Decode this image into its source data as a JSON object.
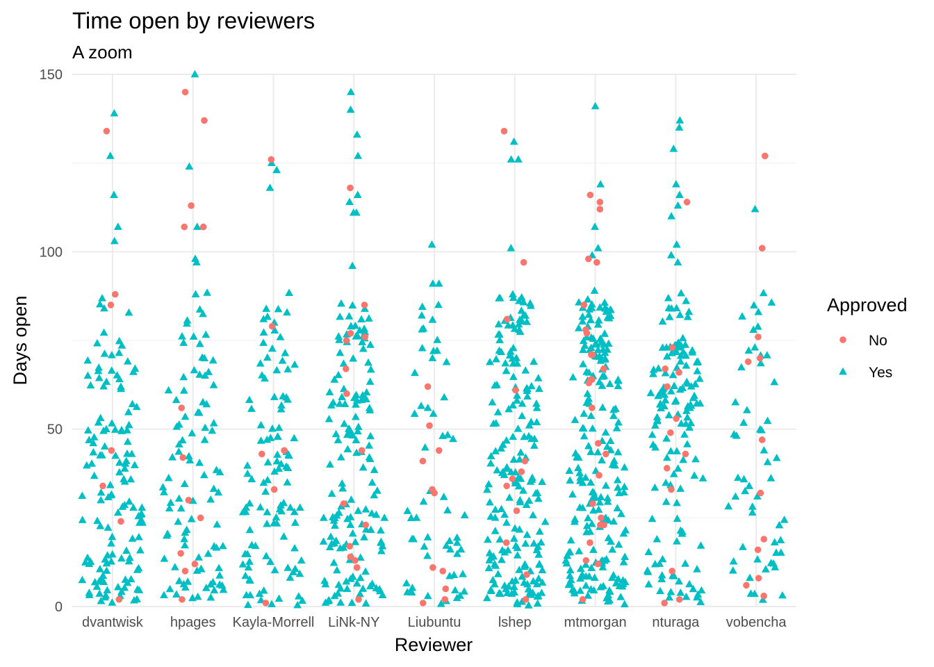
{
  "chart_data": {
    "type": "scatter",
    "title": "Time open by reviewers",
    "subtitle": "A zoom",
    "xlabel": "Reviewer",
    "ylabel": "Days open",
    "categories": [
      "dvantwisk",
      "hpages",
      "Kayla-Morrell",
      "LiNk-NY",
      "Liubuntu",
      "lshep",
      "mtmorgan",
      "nturaga",
      "vobencha"
    ],
    "ylim": [
      0,
      150
    ],
    "yticks": [
      0,
      50,
      100,
      150
    ],
    "grid": true,
    "legend": {
      "title": "Approved",
      "position": "right",
      "entries": [
        {
          "label": "No",
          "shape": "circle",
          "color": "#F8766D"
        },
        {
          "label": "Yes",
          "shape": "triangle",
          "color": "#00BFC4"
        }
      ]
    },
    "colors": {
      "No": "#F8766D",
      "Yes": "#00BFC4"
    },
    "series": [
      {
        "name": "No",
        "points": [
          {
            "x": "dvantwisk",
            "y": 134
          },
          {
            "x": "dvantwisk",
            "y": 88
          },
          {
            "x": "dvantwisk",
            "y": 85
          },
          {
            "x": "dvantwisk",
            "y": 44
          },
          {
            "x": "dvantwisk",
            "y": 34
          },
          {
            "x": "dvantwisk",
            "y": 24
          },
          {
            "x": "dvantwisk",
            "y": 2
          },
          {
            "x": "hpages",
            "y": 145
          },
          {
            "x": "hpages",
            "y": 137
          },
          {
            "x": "hpages",
            "y": 113
          },
          {
            "x": "hpages",
            "y": 107
          },
          {
            "x": "hpages",
            "y": 107
          },
          {
            "x": "hpages",
            "y": 56
          },
          {
            "x": "hpages",
            "y": 42
          },
          {
            "x": "hpages",
            "y": 30
          },
          {
            "x": "hpages",
            "y": 25
          },
          {
            "x": "hpages",
            "y": 15
          },
          {
            "x": "hpages",
            "y": 12
          },
          {
            "x": "hpages",
            "y": 10
          },
          {
            "x": "hpages",
            "y": 2
          },
          {
            "x": "Kayla-Morrell",
            "y": 126
          },
          {
            "x": "Kayla-Morrell",
            "y": 79
          },
          {
            "x": "Kayla-Morrell",
            "y": 44
          },
          {
            "x": "Kayla-Morrell",
            "y": 43
          },
          {
            "x": "Kayla-Morrell",
            "y": 33
          },
          {
            "x": "Kayla-Morrell",
            "y": 1
          },
          {
            "x": "LiNk-NY",
            "y": 118
          },
          {
            "x": "LiNk-NY",
            "y": 85
          },
          {
            "x": "LiNk-NY",
            "y": 77
          },
          {
            "x": "LiNk-NY",
            "y": 76
          },
          {
            "x": "LiNk-NY",
            "y": 75
          },
          {
            "x": "LiNk-NY",
            "y": 67
          },
          {
            "x": "LiNk-NY",
            "y": 60
          },
          {
            "x": "LiNk-NY",
            "y": 44
          },
          {
            "x": "LiNk-NY",
            "y": 29
          },
          {
            "x": "LiNk-NY",
            "y": 23
          },
          {
            "x": "LiNk-NY",
            "y": 17
          },
          {
            "x": "LiNk-NY",
            "y": 14
          },
          {
            "x": "LiNk-NY",
            "y": 13
          },
          {
            "x": "LiNk-NY",
            "y": 11
          },
          {
            "x": "LiNk-NY",
            "y": 2
          },
          {
            "x": "Liubuntu",
            "y": 62
          },
          {
            "x": "Liubuntu",
            "y": 51
          },
          {
            "x": "Liubuntu",
            "y": 44
          },
          {
            "x": "Liubuntu",
            "y": 41
          },
          {
            "x": "Liubuntu",
            "y": 33
          },
          {
            "x": "Liubuntu",
            "y": 32
          },
          {
            "x": "Liubuntu",
            "y": 11
          },
          {
            "x": "Liubuntu",
            "y": 10
          },
          {
            "x": "Liubuntu",
            "y": 5
          },
          {
            "x": "Liubuntu",
            "y": 2
          },
          {
            "x": "Liubuntu",
            "y": 1
          },
          {
            "x": "lshep",
            "y": 134
          },
          {
            "x": "lshep",
            "y": 97
          },
          {
            "x": "lshep",
            "y": 81
          },
          {
            "x": "lshep",
            "y": 61
          },
          {
            "x": "lshep",
            "y": 41
          },
          {
            "x": "lshep",
            "y": 38
          },
          {
            "x": "lshep",
            "y": 36
          },
          {
            "x": "lshep",
            "y": 34
          },
          {
            "x": "lshep",
            "y": 27
          },
          {
            "x": "lshep",
            "y": 18
          },
          {
            "x": "lshep",
            "y": 9
          },
          {
            "x": "lshep",
            "y": 2
          },
          {
            "x": "mtmorgan",
            "y": 116
          },
          {
            "x": "mtmorgan",
            "y": 114
          },
          {
            "x": "mtmorgan",
            "y": 112
          },
          {
            "x": "mtmorgan",
            "y": 98
          },
          {
            "x": "mtmorgan",
            "y": 97
          },
          {
            "x": "mtmorgan",
            "y": 85
          },
          {
            "x": "mtmorgan",
            "y": 78
          },
          {
            "x": "mtmorgan",
            "y": 77
          },
          {
            "x": "mtmorgan",
            "y": 71
          },
          {
            "x": "mtmorgan",
            "y": 71
          },
          {
            "x": "mtmorgan",
            "y": 67
          },
          {
            "x": "mtmorgan",
            "y": 64
          },
          {
            "x": "mtmorgan",
            "y": 64
          },
          {
            "x": "mtmorgan",
            "y": 63
          },
          {
            "x": "mtmorgan",
            "y": 56
          },
          {
            "x": "mtmorgan",
            "y": 46
          },
          {
            "x": "mtmorgan",
            "y": 43
          },
          {
            "x": "mtmorgan",
            "y": 37
          },
          {
            "x": "mtmorgan",
            "y": 29
          },
          {
            "x": "mtmorgan",
            "y": 25
          },
          {
            "x": "mtmorgan",
            "y": 23
          },
          {
            "x": "mtmorgan",
            "y": 23
          },
          {
            "x": "mtmorgan",
            "y": 18
          },
          {
            "x": "mtmorgan",
            "y": 13
          },
          {
            "x": "mtmorgan",
            "y": 12
          },
          {
            "x": "mtmorgan",
            "y": 2
          },
          {
            "x": "nturaga",
            "y": 114
          },
          {
            "x": "nturaga",
            "y": 73
          },
          {
            "x": "nturaga",
            "y": 67
          },
          {
            "x": "nturaga",
            "y": 66
          },
          {
            "x": "nturaga",
            "y": 62
          },
          {
            "x": "nturaga",
            "y": 53
          },
          {
            "x": "nturaga",
            "y": 49
          },
          {
            "x": "nturaga",
            "y": 43
          },
          {
            "x": "nturaga",
            "y": 39
          },
          {
            "x": "nturaga",
            "y": 33
          },
          {
            "x": "nturaga",
            "y": 10
          },
          {
            "x": "nturaga",
            "y": 2
          },
          {
            "x": "nturaga",
            "y": 1
          },
          {
            "x": "vobencha",
            "y": 127
          },
          {
            "x": "vobencha",
            "y": 101
          },
          {
            "x": "vobencha",
            "y": 76
          },
          {
            "x": "vobencha",
            "y": 70
          },
          {
            "x": "vobencha",
            "y": 69
          },
          {
            "x": "vobencha",
            "y": 47
          },
          {
            "x": "vobencha",
            "y": 32
          },
          {
            "x": "vobencha",
            "y": 19
          },
          {
            "x": "vobencha",
            "y": 16
          },
          {
            "x": "vobencha",
            "y": 8
          },
          {
            "x": "vobencha",
            "y": 6
          },
          {
            "x": "vobencha",
            "y": 3
          }
        ]
      },
      {
        "name": "Yes",
        "counts": {
          "dvantwisk": 140,
          "hpages": 100,
          "Kayla-Morrell": 110,
          "LiNk-NY": 160,
          "Liubuntu": 60,
          "lshep": 200,
          "mtmorgan": 220,
          "nturaga": 150,
          "vobencha": 55
        },
        "highlights": [
          {
            "x": "dvantwisk",
            "y": 139
          },
          {
            "x": "dvantwisk",
            "y": 127
          },
          {
            "x": "dvantwisk",
            "y": 116
          },
          {
            "x": "dvantwisk",
            "y": 107
          },
          {
            "x": "dvantwisk",
            "y": 103
          },
          {
            "x": "hpages",
            "y": 150
          },
          {
            "x": "hpages",
            "y": 124
          },
          {
            "x": "hpages",
            "y": 107
          },
          {
            "x": "hpages",
            "y": 98
          },
          {
            "x": "hpages",
            "y": 97
          },
          {
            "x": "hpages",
            "y": 88
          },
          {
            "x": "Kayla-Morrell",
            "y": 125
          },
          {
            "x": "Kayla-Morrell",
            "y": 123
          },
          {
            "x": "Kayla-Morrell",
            "y": 118
          },
          {
            "x": "Kayla-Morrell",
            "y": 80
          },
          {
            "x": "LiNk-NY",
            "y": 145
          },
          {
            "x": "LiNk-NY",
            "y": 140
          },
          {
            "x": "LiNk-NY",
            "y": 133
          },
          {
            "x": "LiNk-NY",
            "y": 127
          },
          {
            "x": "LiNk-NY",
            "y": 116
          },
          {
            "x": "LiNk-NY",
            "y": 114
          },
          {
            "x": "LiNk-NY",
            "y": 111
          },
          {
            "x": "LiNk-NY",
            "y": 111
          },
          {
            "x": "LiNk-NY",
            "y": 96
          },
          {
            "x": "Liubuntu",
            "y": 102
          },
          {
            "x": "Liubuntu",
            "y": 91
          },
          {
            "x": "Liubuntu",
            "y": 91
          },
          {
            "x": "Liubuntu",
            "y": 85
          },
          {
            "x": "Liubuntu",
            "y": 72
          },
          {
            "x": "lshep",
            "y": 131
          },
          {
            "x": "lshep",
            "y": 126
          },
          {
            "x": "lshep",
            "y": 126
          },
          {
            "x": "lshep",
            "y": 101
          },
          {
            "x": "lshep",
            "y": 88
          },
          {
            "x": "lshep",
            "y": 87
          },
          {
            "x": "mtmorgan",
            "y": 141
          },
          {
            "x": "mtmorgan",
            "y": 119
          },
          {
            "x": "mtmorgan",
            "y": 107
          },
          {
            "x": "mtmorgan",
            "y": 101
          },
          {
            "x": "mtmorgan",
            "y": 99
          },
          {
            "x": "mtmorgan",
            "y": 89
          },
          {
            "x": "nturaga",
            "y": 137
          },
          {
            "x": "nturaga",
            "y": 135
          },
          {
            "x": "nturaga",
            "y": 129
          },
          {
            "x": "nturaga",
            "y": 119
          },
          {
            "x": "nturaga",
            "y": 116
          },
          {
            "x": "nturaga",
            "y": 113
          },
          {
            "x": "nturaga",
            "y": 110
          },
          {
            "x": "nturaga",
            "y": 102
          },
          {
            "x": "nturaga",
            "y": 99
          },
          {
            "x": "nturaga",
            "y": 97
          },
          {
            "x": "vobencha",
            "y": 112
          },
          {
            "x": "vobencha",
            "y": 83
          },
          {
            "x": "vobencha",
            "y": 78
          },
          {
            "x": "vobencha",
            "y": 73
          }
        ]
      }
    ]
  }
}
